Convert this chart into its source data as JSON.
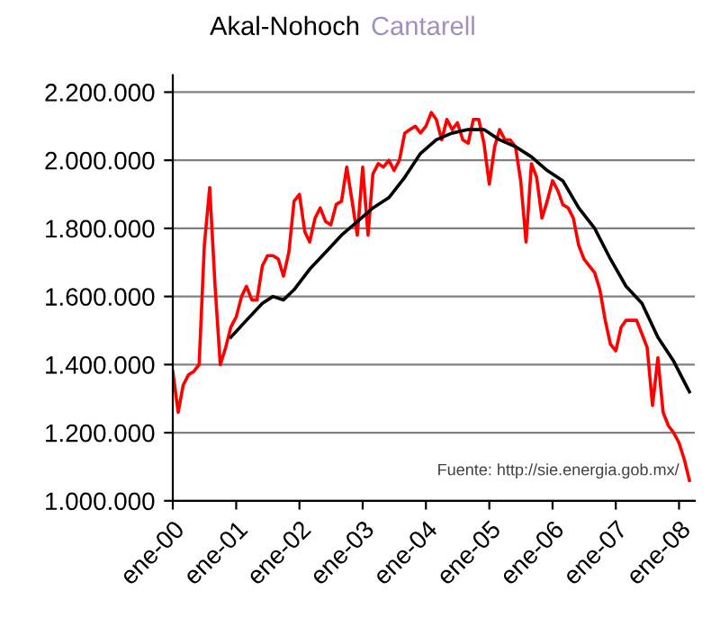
{
  "chart_data": {
    "type": "line",
    "title": "Akal-Nohoch",
    "subtitle": "Cantarell",
    "annotations": [
      {
        "text": "Fuente: http://sie.energia.gob.mx/"
      }
    ],
    "series": [
      {
        "color": "#ff0000",
        "x": [
          "2000-01",
          "2000-02",
          "2000-03",
          "2000-04",
          "2000-05",
          "2000-06",
          "2000-07",
          "2000-08",
          "2000-09",
          "2000-10",
          "2000-11",
          "2000-12",
          "2001-01",
          "2001-02",
          "2001-03",
          "2001-04",
          "2001-05",
          "2001-06",
          "2001-07",
          "2001-08",
          "2001-09",
          "2001-10",
          "2001-11",
          "2001-12",
          "2002-01",
          "2002-02",
          "2002-03",
          "2002-04",
          "2002-05",
          "2002-06",
          "2002-07",
          "2002-08",
          "2002-09",
          "2002-10",
          "2002-11",
          "2002-12",
          "2003-01",
          "2003-02",
          "2003-03",
          "2003-04",
          "2003-05",
          "2003-06",
          "2003-07",
          "2003-08",
          "2003-09",
          "2003-10",
          "2003-11",
          "2003-12",
          "2004-01",
          "2004-02",
          "2004-03",
          "2004-04",
          "2004-05",
          "2004-06",
          "2004-07",
          "2004-08",
          "2004-09",
          "2004-10",
          "2004-11",
          "2004-12",
          "2005-01",
          "2005-02",
          "2005-03",
          "2005-04",
          "2005-05",
          "2005-06",
          "2005-07",
          "2005-08",
          "2005-09",
          "2005-10",
          "2005-11",
          "2005-12",
          "2006-01",
          "2006-02",
          "2006-03",
          "2006-04",
          "2006-05",
          "2006-06",
          "2006-07",
          "2006-08",
          "2006-09",
          "2006-10",
          "2006-11",
          "2006-12",
          "2007-01",
          "2007-02",
          "2007-03",
          "2007-04",
          "2007-05",
          "2007-06",
          "2007-07",
          "2007-08",
          "2007-09",
          "2007-10",
          "2007-11",
          "2007-12",
          "2008-01",
          "2008-02",
          "2008-03"
        ],
        "values": [
          1380000,
          1260000,
          1340000,
          1370000,
          1380000,
          1400000,
          1750000,
          1920000,
          1630000,
          1400000,
          1450000,
          1510000,
          1540000,
          1600000,
          1630000,
          1590000,
          1590000,
          1690000,
          1720000,
          1720000,
          1710000,
          1660000,
          1730000,
          1880000,
          1900000,
          1790000,
          1760000,
          1830000,
          1860000,
          1820000,
          1810000,
          1870000,
          1880000,
          1980000,
          1880000,
          1780000,
          1980000,
          1780000,
          1960000,
          1990000,
          1980000,
          2000000,
          1970000,
          2000000,
          2080000,
          2090000,
          2100000,
          2080000,
          2100000,
          2140000,
          2120000,
          2060000,
          2120000,
          2090000,
          2110000,
          2060000,
          2050000,
          2120000,
          2120000,
          2050000,
          1930000,
          2040000,
          2090000,
          2060000,
          2060000,
          2040000,
          1940000,
          1760000,
          1990000,
          1950000,
          1830000,
          1880000,
          1940000,
          1910000,
          1870000,
          1860000,
          1830000,
          1750000,
          1710000,
          1690000,
          1670000,
          1620000,
          1530000,
          1460000,
          1440000,
          1510000,
          1530000,
          1530000,
          1530000,
          1490000,
          1450000,
          1280000,
          1420000,
          1260000,
          1220000,
          1200000,
          1170000,
          1120000,
          1060000
        ]
      },
      {
        "color": "#000000",
        "x": [
          "2000-12",
          "2001-03",
          "2001-06",
          "2001-08",
          "2001-10",
          "2001-12",
          "2002-03",
          "2002-06",
          "2002-09",
          "2002-12",
          "2003-03",
          "2003-06",
          "2003-09",
          "2003-12",
          "2004-03",
          "2004-06",
          "2004-09",
          "2004-12",
          "2005-03",
          "2005-06",
          "2005-09",
          "2005-12",
          "2006-03",
          "2006-06",
          "2006-09",
          "2006-12",
          "2007-03",
          "2007-06",
          "2007-09",
          "2007-12",
          "2008-03"
        ],
        "values": [
          1480000,
          1530000,
          1580000,
          1600000,
          1590000,
          1620000,
          1680000,
          1730000,
          1780000,
          1820000,
          1860000,
          1890000,
          1950000,
          2020000,
          2060000,
          2080000,
          2090000,
          2090000,
          2060000,
          2040000,
          2010000,
          1970000,
          1940000,
          1860000,
          1800000,
          1710000,
          1630000,
          1580000,
          1480000,
          1410000,
          1320000
        ]
      }
    ],
    "xlim": [
      "2000-01",
      "2008-04"
    ],
    "xticks": [
      {
        "value": "2000-01",
        "label": "ene-00"
      },
      {
        "value": "2001-01",
        "label": "ene-01"
      },
      {
        "value": "2002-01",
        "label": "ene-02"
      },
      {
        "value": "2003-01",
        "label": "ene-03"
      },
      {
        "value": "2004-01",
        "label": "ene-04"
      },
      {
        "value": "2005-01",
        "label": "ene-05"
      },
      {
        "value": "2006-01",
        "label": "ene-06"
      },
      {
        "value": "2007-01",
        "label": "ene-07"
      },
      {
        "value": "2008-01",
        "label": "ene-08"
      }
    ],
    "ylim": [
      1000000,
      2250000
    ],
    "yticks": [
      {
        "value": 1000000,
        "label": "1.000.000"
      },
      {
        "value": 1200000,
        "label": "1.200.000"
      },
      {
        "value": 1400000,
        "label": "1.400.000"
      },
      {
        "value": 1600000,
        "label": "1.600.000"
      },
      {
        "value": 1800000,
        "label": "1.800.000"
      },
      {
        "value": 2000000,
        "label": "2.000.000"
      },
      {
        "value": 2200000,
        "label": "2.200.000"
      }
    ],
    "grid": "y",
    "legend": false,
    "marker": "none",
    "line_style": "solid"
  }
}
